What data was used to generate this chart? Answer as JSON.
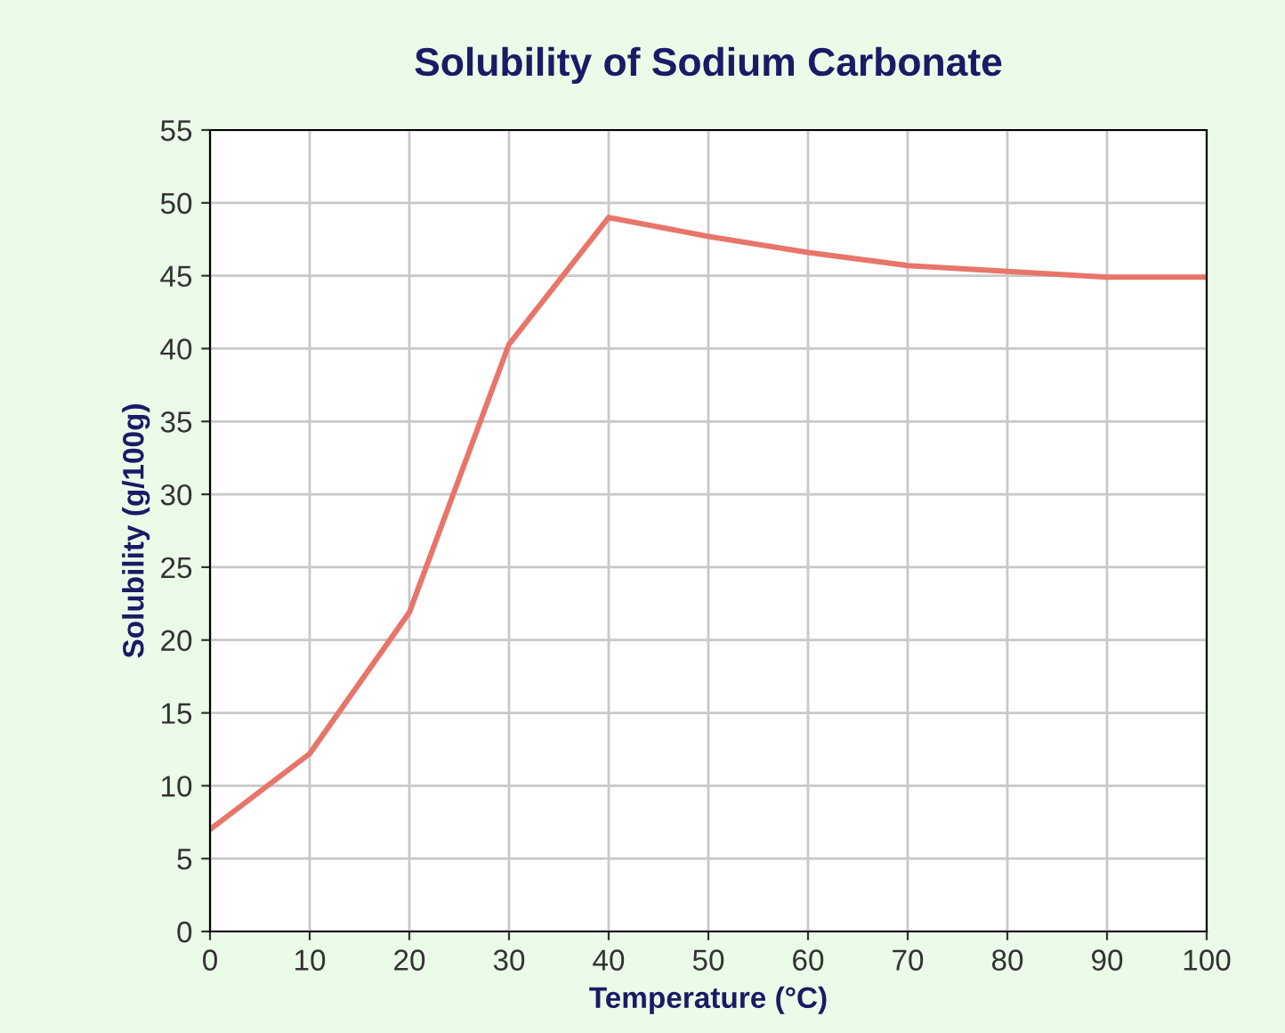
{
  "chart_data": {
    "type": "line",
    "title": "Solubility of Sodium Carbonate",
    "xlabel": "Temperature (°C)",
    "ylabel": "Solubility (g/100g)",
    "x": [
      0,
      10,
      20,
      30,
      40,
      50,
      60,
      70,
      80,
      90,
      100
    ],
    "series": [
      {
        "color": "#e8756a",
        "values": [
          7,
          12.2,
          21.9,
          40.3,
          49,
          47.7,
          46.6,
          45.7,
          45.3,
          44.9,
          44.9
        ]
      }
    ],
    "xlim": [
      0,
      100
    ],
    "xticks": [
      0,
      10,
      20,
      30,
      40,
      50,
      60,
      70,
      80,
      90,
      100
    ],
    "ylim": [
      0,
      55
    ],
    "yticks": [
      0,
      5,
      10,
      15,
      20,
      25,
      30,
      35,
      40,
      45,
      50,
      55
    ],
    "grid": true,
    "legend": false,
    "marker": "none",
    "line_style": "solid"
  }
}
